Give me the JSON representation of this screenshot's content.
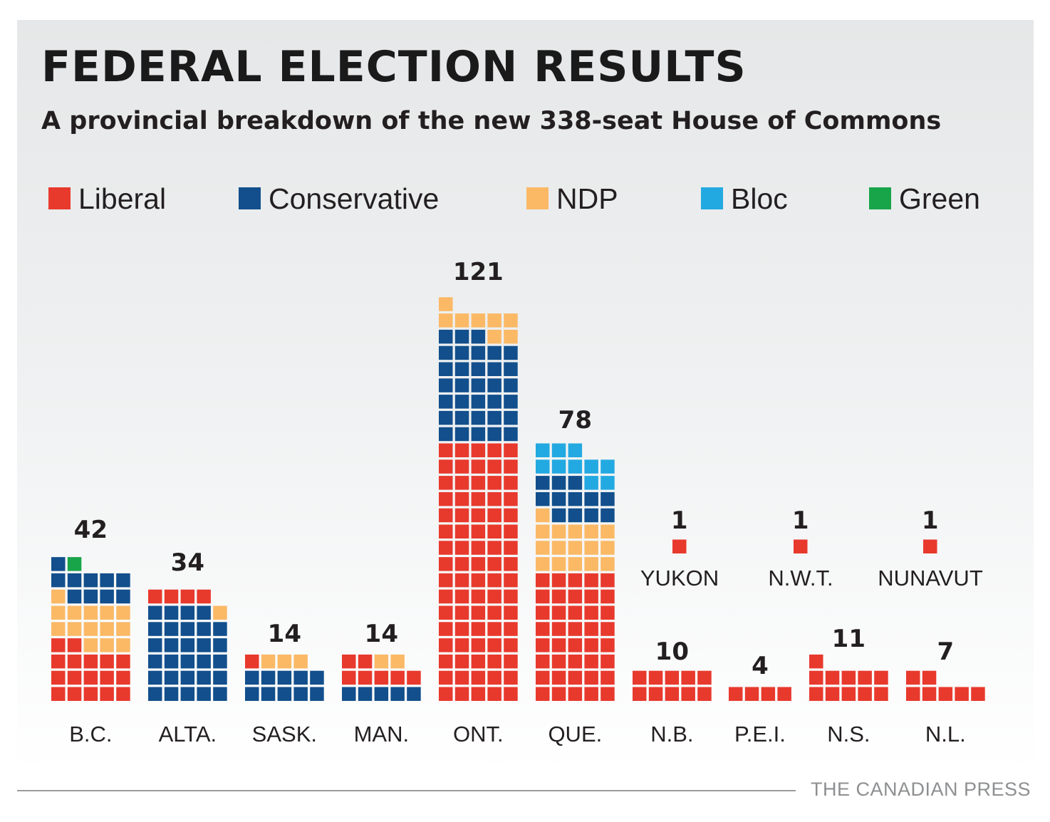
{
  "title": "FEDERAL ELECTION RESULTS",
  "subtitle": "A provincial breakdown of the new 338-seat House of Commons",
  "credit": "THE CANADIAN PRESS",
  "legend": [
    {
      "key": "L",
      "label": "Liberal",
      "color": "#e8392d"
    },
    {
      "key": "C",
      "label": "Conservative",
      "color": "#124f8c"
    },
    {
      "key": "N",
      "label": "NDP",
      "color": "#fbb966"
    },
    {
      "key": "B",
      "label": "Bloc",
      "color": "#23a9e1"
    },
    {
      "key": "G",
      "label": "Green",
      "color": "#18a54a"
    }
  ],
  "chart_data": {
    "type": "waffle",
    "unit": "seat",
    "series": [
      {
        "key": "L",
        "name": "Liberal",
        "color": "#e8392d"
      },
      {
        "key": "C",
        "name": "Conservative",
        "color": "#124f8c"
      },
      {
        "key": "N",
        "name": "NDP",
        "color": "#fbb966"
      },
      {
        "key": "B",
        "name": "Bloc",
        "color": "#23a9e1"
      },
      {
        "key": "G",
        "name": "Green",
        "color": "#18a54a"
      }
    ],
    "provinces": [
      {
        "label": "B.C.",
        "total": "42",
        "seats": {
          "L": 17,
          "C": 10,
          "N": 14,
          "B": 0,
          "G": 1
        }
      },
      {
        "label": "ALTA.",
        "total": "34",
        "seats": {
          "L": 4,
          "C": 29,
          "N": 1,
          "B": 0,
          "G": 0
        }
      },
      {
        "label": "SASK.",
        "total": "14",
        "seats": {
          "L": 1,
          "C": 10,
          "N": 3,
          "B": 0,
          "G": 0
        }
      },
      {
        "label": "MAN.",
        "total": "14",
        "seats": {
          "L": 7,
          "C": 5,
          "N": 2,
          "B": 0,
          "G": 0
        }
      },
      {
        "label": "ONT.",
        "total": "121",
        "seats": {
          "L": 80,
          "C": 33,
          "N": 8,
          "B": 0,
          "G": 0
        }
      },
      {
        "label": "QUE.",
        "total": "78",
        "seats": {
          "L": 40,
          "C": 12,
          "N": 16,
          "B": 10,
          "G": 0
        }
      },
      {
        "label": "YUKON",
        "total": "1",
        "seats": {
          "L": 1,
          "C": 0,
          "N": 0,
          "B": 0,
          "G": 0
        }
      },
      {
        "label": "N.W.T.",
        "total": "1",
        "seats": {
          "L": 1,
          "C": 0,
          "N": 0,
          "B": 0,
          "G": 0
        }
      },
      {
        "label": "NUNAVUT",
        "total": "1",
        "seats": {
          "L": 1,
          "C": 0,
          "N": 0,
          "B": 0,
          "G": 0
        }
      },
      {
        "label": "N.B.",
        "total": "10",
        "seats": {
          "L": 10,
          "C": 0,
          "N": 0,
          "B": 0,
          "G": 0
        }
      },
      {
        "label": "P.E.I.",
        "total": "4",
        "seats": {
          "L": 4,
          "C": 0,
          "N": 0,
          "B": 0,
          "G": 0
        }
      },
      {
        "label": "N.S.",
        "total": "11",
        "seats": {
          "L": 11,
          "C": 0,
          "N": 0,
          "B": 0,
          "G": 0
        }
      },
      {
        "label": "N.L.",
        "total": "7",
        "seats": {
          "L": 7,
          "C": 0,
          "N": 0,
          "B": 0,
          "G": 0
        }
      }
    ]
  }
}
